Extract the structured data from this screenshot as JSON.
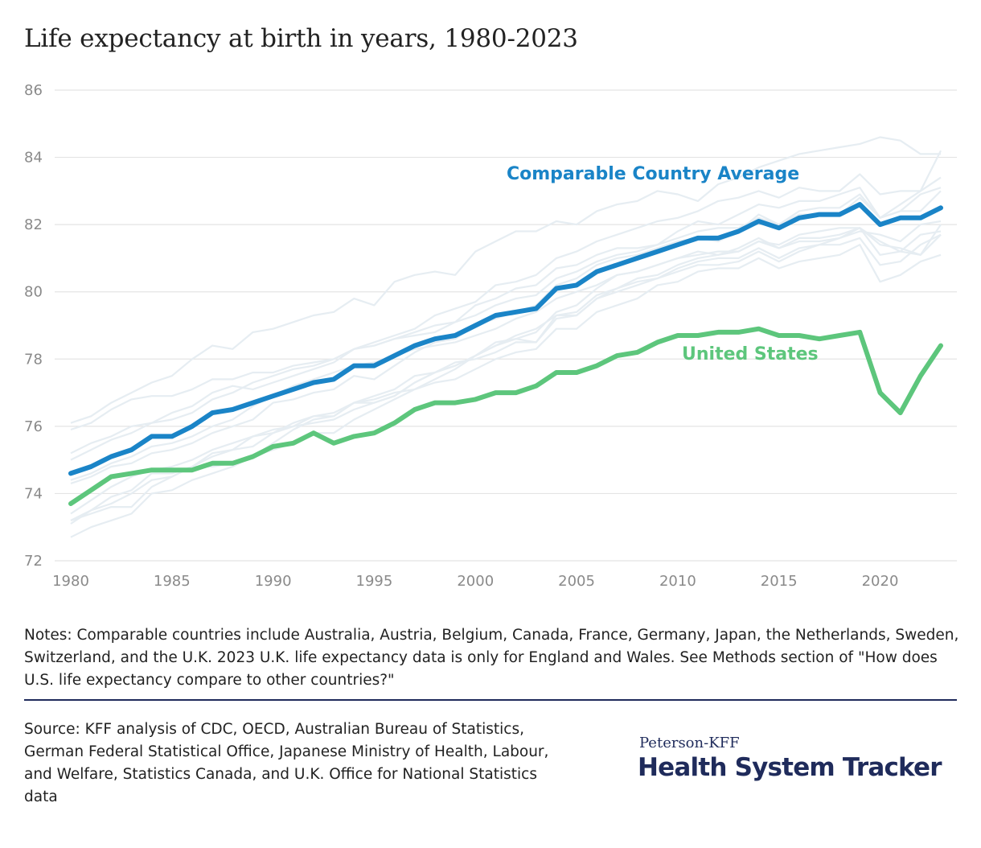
{
  "chart_data": {
    "type": "line",
    "title": "Life expectancy at birth in years, 1980-2023",
    "xlabel": "",
    "ylabel": "",
    "xlim": [
      1980,
      2023
    ],
    "ylim": [
      72,
      86
    ],
    "x_ticks": [
      "1980",
      "1985",
      "1990",
      "1995",
      "2000",
      "2005",
      "2010",
      "2015",
      "2020"
    ],
    "y_ticks": [
      "72",
      "74",
      "76",
      "78",
      "80",
      "82",
      "84",
      "86"
    ],
    "grid": "horizontal",
    "x": [
      1980,
      1981,
      1982,
      1983,
      1984,
      1985,
      1986,
      1987,
      1988,
      1989,
      1990,
      1991,
      1992,
      1993,
      1994,
      1995,
      1996,
      1997,
      1998,
      1999,
      2000,
      2001,
      2002,
      2003,
      2004,
      2005,
      2006,
      2007,
      2008,
      2009,
      2010,
      2011,
      2012,
      2013,
      2014,
      2015,
      2016,
      2017,
      2018,
      2019,
      2020,
      2021,
      2022,
      2023
    ],
    "series": [
      {
        "name": "Comparable Country Average",
        "color": "#1a84c7",
        "values": [
          74.6,
          74.8,
          75.1,
          75.3,
          75.7,
          75.7,
          76.0,
          76.4,
          76.5,
          76.7,
          76.9,
          77.1,
          77.3,
          77.4,
          77.8,
          77.8,
          78.1,
          78.4,
          78.6,
          78.7,
          79.0,
          79.3,
          79.4,
          79.5,
          80.1,
          80.2,
          80.6,
          80.8,
          81.0,
          81.2,
          81.4,
          81.6,
          81.6,
          81.8,
          82.1,
          81.9,
          82.2,
          82.3,
          82.3,
          82.6,
          82.0,
          82.2,
          82.2,
          82.5
        ]
      },
      {
        "name": "United States",
        "color": "#5dc67c",
        "values": [
          73.7,
          74.1,
          74.5,
          74.6,
          74.7,
          74.7,
          74.7,
          74.9,
          74.9,
          75.1,
          75.4,
          75.5,
          75.8,
          75.5,
          75.7,
          75.8,
          76.1,
          76.5,
          76.7,
          76.7,
          76.8,
          77.0,
          77.0,
          77.2,
          77.6,
          77.6,
          77.8,
          78.1,
          78.2,
          78.5,
          78.7,
          78.7,
          78.8,
          78.8,
          78.9,
          78.7,
          78.7,
          78.6,
          78.7,
          78.8,
          77.0,
          76.4,
          77.5,
          78.4
        ]
      }
    ],
    "background_series_color": "#e6edf2",
    "background_series": [
      {
        "values": [
          76.1,
          76.3,
          76.7,
          77.0,
          77.3,
          77.5,
          78.0,
          78.4,
          78.3,
          78.8,
          78.9,
          79.1,
          79.3,
          79.4,
          79.8,
          79.6,
          80.3,
          80.5,
          80.6,
          80.5,
          81.2,
          81.5,
          81.8,
          81.8,
          82.1,
          82.0,
          82.4,
          82.6,
          82.7,
          83.0,
          82.9,
          82.7,
          83.2,
          83.4,
          83.7,
          83.9,
          84.1,
          84.2,
          84.3,
          84.4,
          84.6,
          84.5,
          84.1,
          84.1
        ]
      },
      {
        "values": [
          75.9,
          76.1,
          76.5,
          76.8,
          76.9,
          76.9,
          77.1,
          77.4,
          77.4,
          77.6,
          77.6,
          77.8,
          77.9,
          78.0,
          78.3,
          78.4,
          78.6,
          78.8,
          79.0,
          79.1,
          79.6,
          79.8,
          80.1,
          80.2,
          80.7,
          80.8,
          81.1,
          81.3,
          81.3,
          81.4,
          81.8,
          82.1,
          82.0,
          82.3,
          82.6,
          82.5,
          82.7,
          82.7,
          82.9,
          83.1,
          82.2,
          82.6,
          83.0,
          83.4
        ]
      },
      {
        "values": [
          75.2,
          75.5,
          75.7,
          76.0,
          76.1,
          76.4,
          76.6,
          77.0,
          77.2,
          77.1,
          77.3,
          77.5,
          77.7,
          77.9,
          78.3,
          78.5,
          78.7,
          78.9,
          79.3,
          79.5,
          79.7,
          80.2,
          80.3,
          80.5,
          81.0,
          81.2,
          81.5,
          81.7,
          81.9,
          82.1,
          82.2,
          82.4,
          82.7,
          82.8,
          83.0,
          82.8,
          83.1,
          83.0,
          83.0,
          83.5,
          82.9,
          83.0,
          83.0,
          84.2
        ]
      },
      {
        "values": [
          75.0,
          75.3,
          75.6,
          75.8,
          76.1,
          76.2,
          76.4,
          76.8,
          77.0,
          77.3,
          77.5,
          77.7,
          77.8,
          78.0,
          78.3,
          78.4,
          78.6,
          78.7,
          78.8,
          79.1,
          79.3,
          79.6,
          79.8,
          79.9,
          80.4,
          80.6,
          80.9,
          81.1,
          81.2,
          81.4,
          81.6,
          81.8,
          81.9,
          81.9,
          82.2,
          82.0,
          82.3,
          82.3,
          82.3,
          82.8,
          82.2,
          82.4,
          82.9,
          83.1
        ]
      },
      {
        "values": [
          74.3,
          74.5,
          74.8,
          74.9,
          75.2,
          75.3,
          75.5,
          75.8,
          76.0,
          76.2,
          76.7,
          76.8,
          77.0,
          77.1,
          77.5,
          77.4,
          77.8,
          78.2,
          78.5,
          78.6,
          79.0,
          79.2,
          79.4,
          79.6,
          80.2,
          80.4,
          80.8,
          81.0,
          81.1,
          81.3,
          81.5,
          81.6,
          81.5,
          81.8,
          82.3,
          82.0,
          82.4,
          82.5,
          82.5,
          82.9,
          82.2,
          82.4,
          82.4,
          83.0
        ]
      },
      {
        "values": [
          74.4,
          74.6,
          74.9,
          75.1,
          75.4,
          75.5,
          75.7,
          76.0,
          76.2,
          76.6,
          76.9,
          77.2,
          77.4,
          77.6,
          77.8,
          77.9,
          78.1,
          78.3,
          78.4,
          78.5,
          78.7,
          78.9,
          79.2,
          79.4,
          79.8,
          80.0,
          80.2,
          80.5,
          80.6,
          80.8,
          81.0,
          81.1,
          81.2,
          81.2,
          81.5,
          81.3,
          81.5,
          81.5,
          81.6,
          81.9,
          81.5,
          81.2,
          81.1,
          81.7
        ]
      },
      {
        "values": [
          73.4,
          73.8,
          74.2,
          74.5,
          74.7,
          74.8,
          75.0,
          75.3,
          75.5,
          75.7,
          75.9,
          76.0,
          76.1,
          76.2,
          76.5,
          76.7,
          76.9,
          77.3,
          77.6,
          77.8,
          78.1,
          78.4,
          78.7,
          78.9,
          79.3,
          79.4,
          79.9,
          80.1,
          80.3,
          80.4,
          80.6,
          80.8,
          80.8,
          80.9,
          81.2,
          80.9,
          81.2,
          81.4,
          81.6,
          81.8,
          81.7,
          81.5,
          82.0,
          82.1
        ]
      },
      {
        "values": [
          73.2,
          73.5,
          73.9,
          74.1,
          74.6,
          74.6,
          74.8,
          75.2,
          75.3,
          75.4,
          75.8,
          76.1,
          76.3,
          76.4,
          76.7,
          76.9,
          77.1,
          77.5,
          77.6,
          77.8,
          78.1,
          78.5,
          78.6,
          78.8,
          79.4,
          79.6,
          80.1,
          80.5,
          80.6,
          80.8,
          81.0,
          81.2,
          81.1,
          81.3,
          81.6,
          81.3,
          81.6,
          81.6,
          81.7,
          81.9,
          81.1,
          81.2,
          81.7,
          81.8
        ]
      },
      {
        "values": [
          73.1,
          73.5,
          73.7,
          74.0,
          74.4,
          74.5,
          74.8,
          75.1,
          75.3,
          75.7,
          75.8,
          76.0,
          76.3,
          76.3,
          76.7,
          76.7,
          76.9,
          77.3,
          77.6,
          77.9,
          78.0,
          78.2,
          78.5,
          78.5,
          79.2,
          79.3,
          79.8,
          80.0,
          80.2,
          80.4,
          80.7,
          80.9,
          81.0,
          81.0,
          81.3,
          81.0,
          81.3,
          81.4,
          81.4,
          81.6,
          80.8,
          80.9,
          81.4,
          81.7
        ]
      },
      {
        "values": [
          72.7,
          73.0,
          73.2,
          73.4,
          74.0,
          74.1,
          74.4,
          74.6,
          74.8,
          75.1,
          75.3,
          75.5,
          75.8,
          75.8,
          76.2,
          76.5,
          76.8,
          77.1,
          77.4,
          77.7,
          78.1,
          78.4,
          78.6,
          78.5,
          79.3,
          79.3,
          79.8,
          80.1,
          80.4,
          80.5,
          80.8,
          81.0,
          81.1,
          81.2,
          81.5,
          81.4,
          81.7,
          81.8,
          81.9,
          81.9,
          81.4,
          81.3,
          81.1,
          82.0
        ]
      },
      {
        "values": [
          73.2,
          73.4,
          73.6,
          73.6,
          74.2,
          74.5,
          74.8,
          74.8,
          74.9,
          75.1,
          75.5,
          75.9,
          76.2,
          76.3,
          76.7,
          76.8,
          77.0,
          77.1,
          77.3,
          77.4,
          77.7,
          78.0,
          78.2,
          78.3,
          78.9,
          78.9,
          79.4,
          79.6,
          79.8,
          80.2,
          80.3,
          80.6,
          80.7,
          80.7,
          81.0,
          80.7,
          80.9,
          81.0,
          81.1,
          81.4,
          80.3,
          80.5,
          80.9,
          81.1
        ]
      }
    ]
  }
}
